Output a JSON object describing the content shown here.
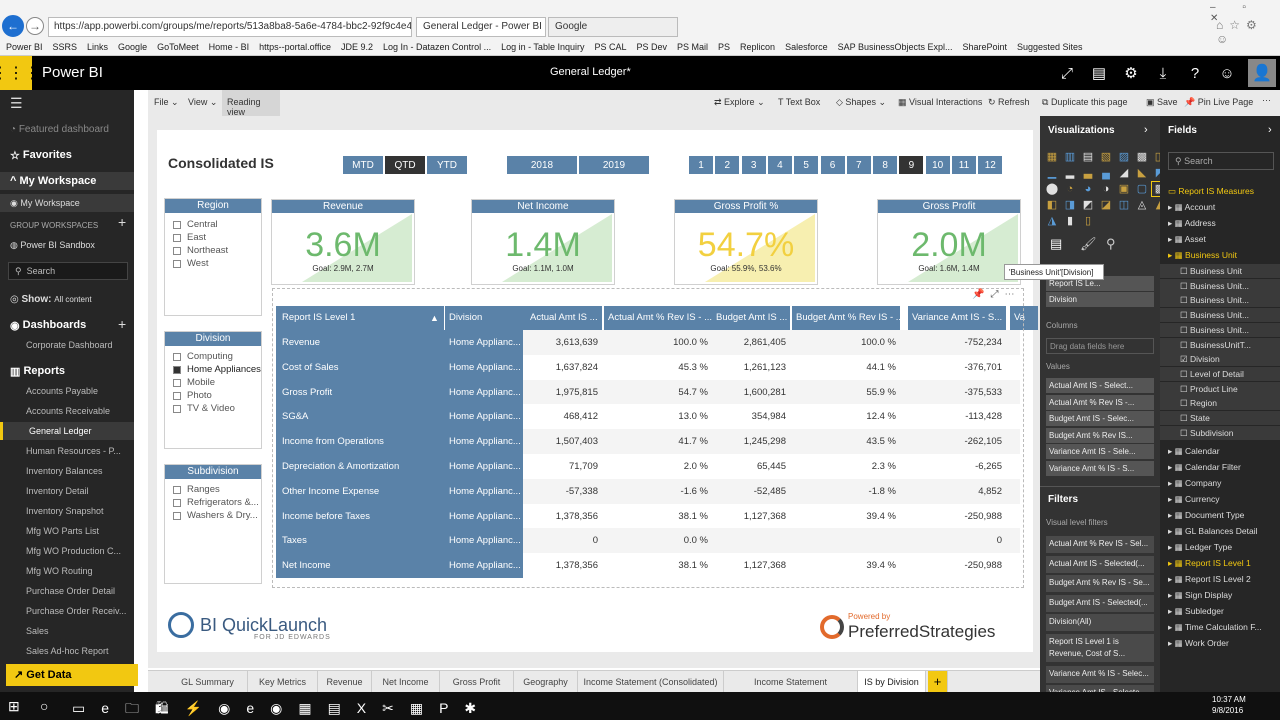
{
  "browser": {
    "address": "https://app.powerbi.com/groups/me/reports/513a8ba8-5a6e-4784-bbc2-92f9c4e439ff/R",
    "tab1": "General Ledger - Power BI",
    "tab2": "Google"
  },
  "favorites": [
    "Power BI",
    "SSRS",
    "Links",
    "Google",
    "GoToMeet",
    "Home - BI",
    "https--portal.office",
    "JDE 9.2",
    "Log In - Datazen Control ...",
    "Log in - Table Inquiry",
    "PS CAL",
    "PS Dev",
    "PS Mail",
    "PS",
    "Replicon",
    "Salesforce",
    "SAP BusinessObjects Expl...",
    "SharePoint",
    "Suggested Sites"
  ],
  "header": {
    "app": "Power BI",
    "title": "General Ledger*"
  },
  "nav": {
    "featured": "Featured dashboard",
    "favorites": "Favorites",
    "my_workspace": "My Workspace",
    "my_workspace_item": "My Workspace",
    "group_ws": "GROUP WORKSPACES",
    "sandbox": "Power BI Sandbox",
    "search": "Search",
    "show_label": "Show:",
    "show_value": "All content",
    "dashboards": "Dashboards",
    "dash_item": "Corporate Dashboard",
    "reports": "Reports",
    "report_items": [
      "Accounts Payable",
      "Accounts Receivable",
      "General Ledger",
      "Human Resources - P...",
      "Inventory Balances",
      "Inventory Detail",
      "Inventory Snapshot",
      "Mfg WO Parts List",
      "Mfg WO Production C...",
      "Mfg WO Routing",
      "Purchase Order Detail",
      "Purchase Order Receiv...",
      "Sales",
      "Sales Ad-hoc Report"
    ],
    "get_data": "Get Data"
  },
  "ribbon": {
    "file": "File",
    "view": "View",
    "reading": "Reading view",
    "explore": "Explore",
    "textbox": "Text Box",
    "shapes": "Shapes",
    "visual": "Visual Interactions",
    "refresh": "Refresh",
    "duplicate": "Duplicate this page",
    "save": "Save",
    "pin": "Pin Live Page"
  },
  "report": {
    "title": "Consolidated IS",
    "period": [
      "MTD",
      "QTD",
      "YTD"
    ],
    "years": [
      "2018",
      "2019"
    ],
    "months": [
      "1",
      "2",
      "3",
      "4",
      "5",
      "6",
      "7",
      "8",
      "9",
      "10",
      "11",
      "12"
    ],
    "region": {
      "title": "Region",
      "items": [
        "Central",
        "East",
        "Northeast",
        "West"
      ]
    },
    "division": {
      "title": "Division",
      "items": [
        "Computing",
        "Home Appliances",
        "Mobile",
        "Photo",
        "TV & Video"
      ]
    },
    "subdivision": {
      "title": "Subdivision",
      "items": [
        "Ranges",
        "Refrigerators &...",
        "Washers & Dry..."
      ]
    },
    "kpis": [
      {
        "title": "Revenue",
        "value": "3.6M",
        "goal": "Goal: 2.9M, 2.7M"
      },
      {
        "title": "Net Income",
        "value": "1.4M",
        "goal": "Goal: 1.1M, 1.0M"
      },
      {
        "title": "Gross Profit %",
        "value": "54.7%",
        "goal": "Goal: 55.9%, 53.6%"
      },
      {
        "title": "Gross Profit",
        "value": "2.0M",
        "goal": "Goal: 1.6M, 1.4M"
      }
    ],
    "table": {
      "headers": [
        "Report IS Level 1",
        "Division",
        "Actual Amt IS ...",
        "Actual Amt % Rev IS - ...",
        "Budget Amt IS ...",
        "Budget Amt % Rev IS - ...",
        "Variance Amt IS - S...",
        "Va"
      ],
      "rows": [
        [
          "Revenue",
          "Home Applianc...",
          "3,613,639",
          "100.0 %",
          "2,861,405",
          "100.0 %",
          "-752,234"
        ],
        [
          "Cost of Sales",
          "Home Applianc...",
          "1,637,824",
          "45.3 %",
          "1,261,123",
          "44.1 %",
          "-376,701"
        ],
        [
          "Gross Profit",
          "Home Applianc...",
          "1,975,815",
          "54.7 %",
          "1,600,281",
          "55.9 %",
          "-375,533"
        ],
        [
          "SG&A",
          "Home Applianc...",
          "468,412",
          "13.0 %",
          "354,984",
          "12.4 %",
          "-113,428"
        ],
        [
          "Income from Operations",
          "Home Applianc...",
          "1,507,403",
          "41.7 %",
          "1,245,298",
          "43.5 %",
          "-262,105"
        ],
        [
          "Depreciation & Amortization",
          "Home Applianc...",
          "71,709",
          "2.0 %",
          "65,445",
          "2.3 %",
          "-6,265"
        ],
        [
          "Other Income Expense",
          "Home Applianc...",
          "-57,338",
          "-1.6 %",
          "-52,485",
          "-1.8 %",
          "4,852"
        ],
        [
          "Income before Taxes",
          "Home Applianc...",
          "1,378,356",
          "38.1 %",
          "1,127,368",
          "39.4 %",
          "-250,988"
        ],
        [
          "Taxes",
          "Home Applianc...",
          "0",
          "0.0 %",
          "",
          "",
          "0"
        ],
        [
          "Net Income",
          "Home Applianc...",
          "1,378,356",
          "38.1 %",
          "1,127,368",
          "39.4 %",
          "-250,988"
        ]
      ]
    },
    "footer_left": "BI QuickLaunch",
    "footer_left_sub": "FOR JD EDWARDS",
    "footer_right_top": "Powered by",
    "footer_right": "PreferredStrategies"
  },
  "page_tabs": [
    "GL Summary",
    "Key Metrics",
    "Revenue",
    "Net Income",
    "Gross Profit",
    "Geography",
    "Income Statement (Consolidated)",
    "Income Statement (Consolidating)",
    "IS by Division"
  ],
  "viz": {
    "title": "Visualizations",
    "tooltip": "'Business Unit'[Division]",
    "rows_pill": "Report IS Le...",
    "division_pill": "Division",
    "columns": "Columns",
    "drag": "Drag data fields here",
    "values": "Values",
    "value_pills": [
      "Actual Amt IS - Select...",
      "Actual Amt % Rev IS -...",
      "Budget Amt IS - Selec...",
      "Budget Amt % Rev IS...",
      "Variance Amt IS - Sele...",
      "Variance Amt % IS - S..."
    ],
    "filters": "Filters",
    "visual_filters": "Visual level filters",
    "filter_pills": [
      "Actual Amt % Rev IS - Sel...",
      "Actual Amt IS - Selected(...",
      "Budget Amt % Rev IS - Se...",
      "Budget Amt IS - Selected(...",
      "Division(All)",
      "Report IS Level 1 is Revenue, Cost of S...",
      "Variance Amt % IS - Selec...",
      "Variance Amt IS - Selecte..."
    ]
  },
  "fields": {
    "title": "Fields",
    "search": "Search",
    "items": [
      "Report IS Measures",
      "Account",
      "Address",
      "Asset",
      "Business Unit"
    ],
    "bu_items": [
      "Business Unit",
      "Business Unit...",
      "Business Unit...",
      "Business Unit...",
      "Business Unit...",
      "BusinessUnitT...",
      "Division",
      "Level of Detail",
      "Product Line",
      "Region",
      "State",
      "Subdivision"
    ],
    "more": [
      "Calendar",
      "Calendar Filter",
      "Company",
      "Currency",
      "Document Type",
      "GL Balances Detail",
      "Ledger Type",
      "Report IS Level 1",
      "Report IS Level 2",
      "Sign Display",
      "Subledger",
      "Time Calculation F...",
      "Work Order"
    ]
  },
  "taskbar": {
    "time": "10:37 AM",
    "date": "9/8/2016"
  }
}
